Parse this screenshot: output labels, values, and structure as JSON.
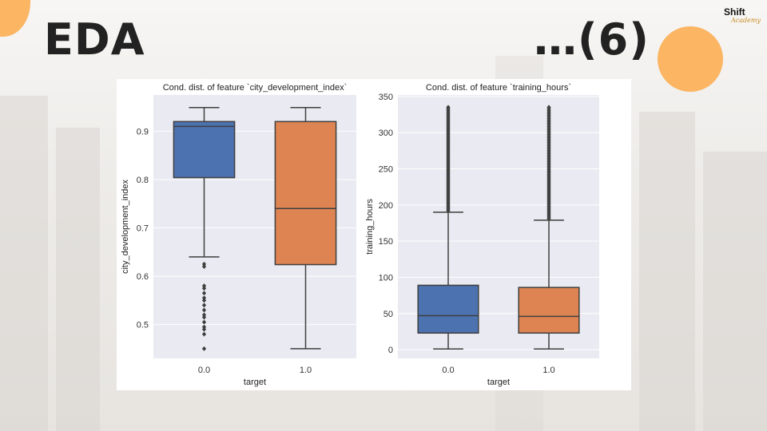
{
  "slide": {
    "title": "EDA",
    "part": "…(6)",
    "logo_line1": "Shift",
    "logo_line2": "Academy"
  },
  "colors": {
    "accent_orange": "#fbb563",
    "box_target_0": "#4c72b0",
    "box_target_1": "#dd8452",
    "plot_bg": "#eaeaf2"
  },
  "chart_data": [
    {
      "type": "box",
      "title": "Cond. dist. of feature `city_development_index`",
      "xlabel": "target",
      "ylabel": "city_development_index",
      "categories": [
        "0.0",
        "1.0"
      ],
      "ylim": [
        0.43,
        0.975
      ],
      "yticks": [
        0.5,
        0.6,
        0.7,
        0.8,
        0.9
      ],
      "ytick_labels": [
        "0.5",
        "0.6",
        "0.7",
        "0.8",
        "0.9"
      ],
      "grid": true,
      "boxes": [
        {
          "category": "0.0",
          "whisker_low": 0.64,
          "q1": 0.804,
          "median": 0.91,
          "q3": 0.92,
          "whisker_high": 0.949,
          "outliers": [
            0.625,
            0.62,
            0.58,
            0.575,
            0.565,
            0.555,
            0.55,
            0.54,
            0.53,
            0.52,
            0.515,
            0.505,
            0.495,
            0.49,
            0.48,
            0.45
          ]
        },
        {
          "category": "1.0",
          "whisker_low": 0.45,
          "q1": 0.624,
          "median": 0.74,
          "q3": 0.92,
          "whisker_high": 0.949,
          "outliers": []
        }
      ]
    },
    {
      "type": "box",
      "title": "Cond. dist. of feature `training_hours`",
      "xlabel": "target",
      "ylabel": "training_hours",
      "categories": [
        "0.0",
        "1.0"
      ],
      "ylim": [
        -12,
        352
      ],
      "yticks": [
        0,
        50,
        100,
        150,
        200,
        250,
        300,
        350
      ],
      "ytick_labels": [
        "0",
        "50",
        "100",
        "150",
        "200",
        "250",
        "300",
        "350"
      ],
      "grid": true,
      "boxes": [
        {
          "category": "0.0",
          "whisker_low": 1,
          "q1": 23,
          "median": 47,
          "q3": 89,
          "whisker_high": 190,
          "outliers_range": [
            192,
            336
          ]
        },
        {
          "category": "1.0",
          "whisker_low": 1,
          "q1": 23,
          "median": 46,
          "q3": 86,
          "whisker_high": 179,
          "outliers_range": [
            181,
            336
          ]
        }
      ]
    }
  ]
}
